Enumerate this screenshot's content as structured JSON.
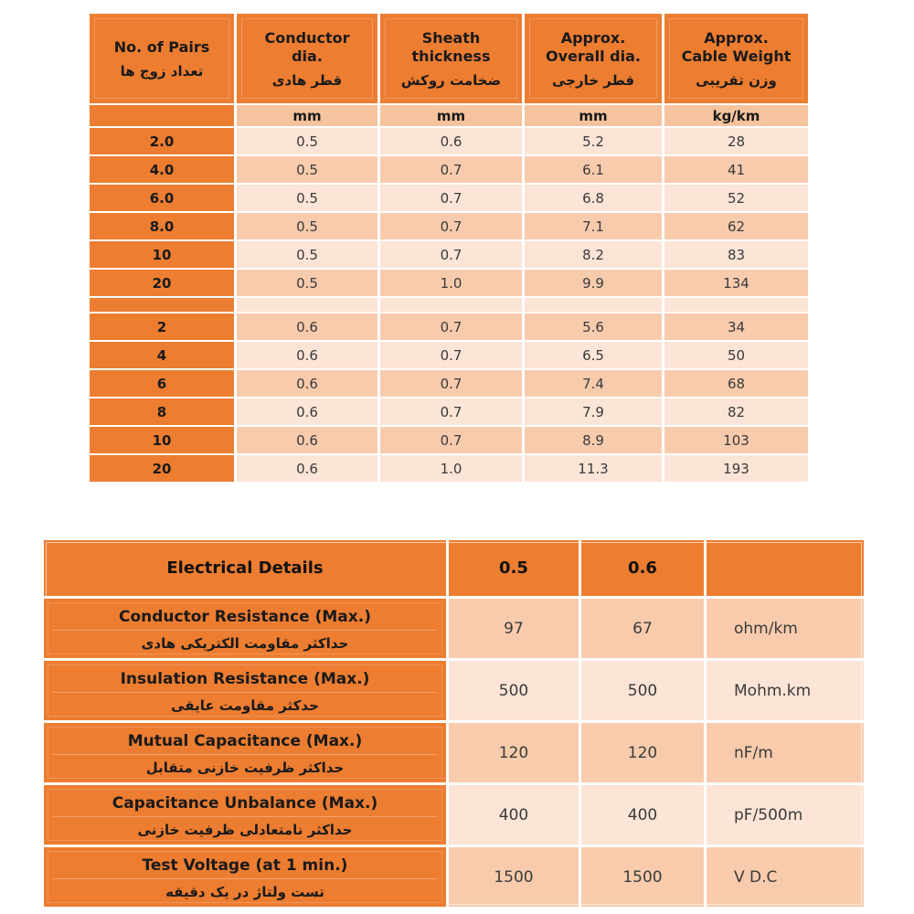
{
  "colors": {
    "orange": "#ED7D31",
    "tint_light": "#FCE4D6",
    "tint_medium": "#F8CBAD",
    "tint_units_row": "#F5C49E",
    "text_heading": "#1A1A1A",
    "text_data": "#3A3A3A",
    "background": "#FFFFFF"
  },
  "cable_table": {
    "columns": [
      {
        "en": "No. of Pairs",
        "fa": "تعداد زوج ها"
      },
      {
        "en": "Conductor\ndia.",
        "fa": "قطر هادی"
      },
      {
        "en": "Sheath\nthickness",
        "fa": "ضخامت روکش"
      },
      {
        "en": "Approx.\nOverall dia.",
        "fa": "قطر خارجی"
      },
      {
        "en": "Approx.\nCable Weight",
        "fa": "وزن تقریبی"
      }
    ],
    "units": [
      "",
      "mm",
      "mm",
      "mm",
      "kg/km"
    ],
    "group_05": [
      [
        "2.0",
        "0.5",
        "0.6",
        "5.2",
        "28"
      ],
      [
        "4.0",
        "0.5",
        "0.7",
        "6.1",
        "41"
      ],
      [
        "6.0",
        "0.5",
        "0.7",
        "6.8",
        "52"
      ],
      [
        "8.0",
        "0.5",
        "0.7",
        "7.1",
        "62"
      ],
      [
        "10",
        "0.5",
        "0.7",
        "8.2",
        "83"
      ],
      [
        "20",
        "0.5",
        "1.0",
        "9.9",
        "134"
      ]
    ],
    "group_06": [
      [
        "2",
        "0.6",
        "0.7",
        "5.6",
        "34"
      ],
      [
        "4",
        "0.6",
        "0.7",
        "6.5",
        "50"
      ],
      [
        "6",
        "0.6",
        "0.7",
        "7.4",
        "68"
      ],
      [
        "8",
        "0.6",
        "0.7",
        "7.9",
        "82"
      ],
      [
        "10",
        "0.6",
        "0.7",
        "8.9",
        "103"
      ],
      [
        "20",
        "0.6",
        "1.0",
        "11.3",
        "193"
      ]
    ]
  },
  "electrical_table": {
    "header": {
      "title": "Electrical Details",
      "col_05": "0.5",
      "col_06": "0.6",
      "unit_col": ""
    },
    "rows": [
      {
        "en": "Conductor Resistance (Max.)",
        "fa": "حداکثر مقاومت الکتریکی هادی",
        "v05": "97",
        "v06": "67",
        "unit": "ohm/km"
      },
      {
        "en": "Insulation Resistance (Max.)",
        "fa": "حدکثر مقاومت عایقی",
        "v05": "500",
        "v06": "500",
        "unit": "Mohm.km"
      },
      {
        "en": "Mutual Capacitance (Max.)",
        "fa": "حداکثر ظرفیت خازنی متقابل",
        "v05": "120",
        "v06": "120",
        "unit": "nF/m"
      },
      {
        "en": "Capacitance Unbalance (Max.)",
        "fa": "حداکثر نامتعادلی ظرفیت خازنی",
        "v05": "400",
        "v06": "400",
        "unit": "pF/500m"
      },
      {
        "en": "Test Voltage (at 1 min.)",
        "fa": "تست ولتاژ در یک دقیقه",
        "v05": "1500",
        "v06": "1500",
        "unit": "V D.C"
      }
    ]
  }
}
